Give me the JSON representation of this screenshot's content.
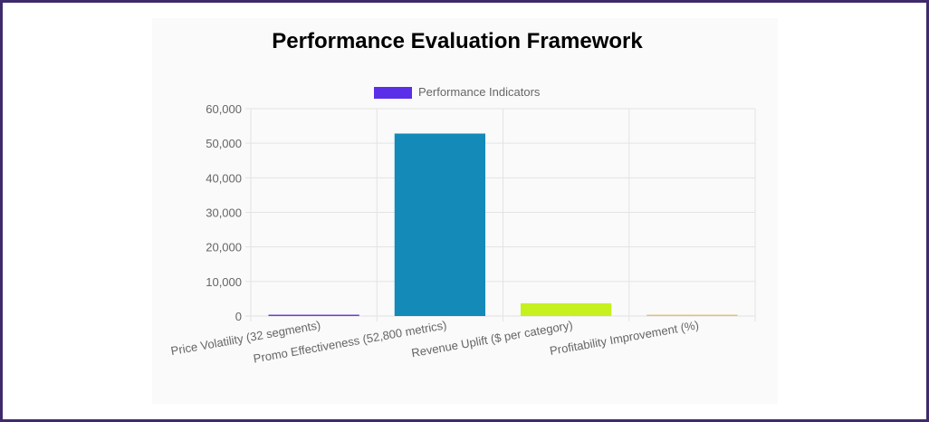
{
  "chart_data": {
    "type": "bar",
    "title": "Performance Evaluation Framework",
    "categories": [
      "Price Volatility (32 segments)",
      "Promo Effectiveness (52,800 metrics)",
      "Revenue Uplift ($ per category)",
      "Profitability Improvement (%)"
    ],
    "series": [
      {
        "name": "Performance Indicators",
        "values": [
          32,
          52800,
          3700,
          15
        ],
        "colors": [
          "#6a3fd6",
          "#138ab8",
          "#c6f01e",
          "#e5c07b"
        ]
      }
    ],
    "legend": {
      "label": "Performance Indicators",
      "color": "#5b2ee8",
      "position": "top"
    },
    "ylim": [
      0,
      60000
    ],
    "yticks": [
      0,
      10000,
      20000,
      30000,
      40000,
      50000,
      60000
    ],
    "ytick_labels": [
      "0",
      "10,000",
      "20,000",
      "30,000",
      "40,000",
      "50,000",
      "60,000"
    ],
    "grid": true,
    "xlabel": "",
    "ylabel": ""
  }
}
